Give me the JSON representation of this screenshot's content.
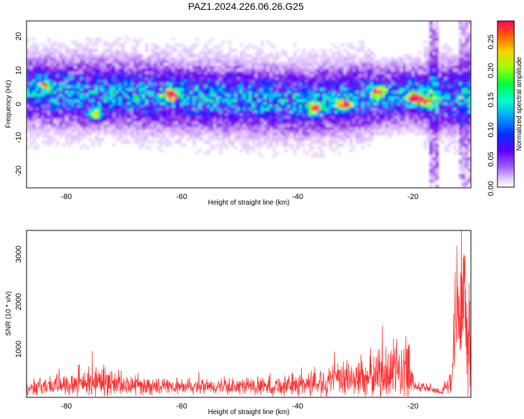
{
  "title": "PAZ1.2024.226.06.26.G25",
  "chart_data": [
    {
      "type": "heatmap",
      "xlabel": "Height of straight line (km)",
      "ylabel": "Frequency (Hz)",
      "xlim": [
        -87,
        -10
      ],
      "ylim": [
        -25,
        25
      ],
      "xticks": [
        "-80",
        "-60",
        "-40",
        "-20"
      ],
      "yticks": [
        "20",
        "10",
        "0",
        "-10",
        "-20"
      ],
      "colorbar": {
        "label": "Normalized spectral amplitude",
        "range": [
          0,
          0.29
        ],
        "ticks": [
          "0.00",
          "0.05",
          "0.10",
          "0.15",
          "0.20",
          "0.25"
        ],
        "colors": [
          "#ffffff",
          "#d6b0ff",
          "#8a2be2",
          "#5a00ff",
          "#0033ff",
          "#00b4ff",
          "#00ffd0",
          "#00ff40",
          "#c8ff00",
          "#ffd000",
          "#ff6000",
          "#ff0080"
        ]
      },
      "description_values": {
        "band_center_hz": [
          {
            "x": -85,
            "f": 4
          },
          {
            "x": -65,
            "f": 3
          },
          {
            "x": -40,
            "f": 1
          },
          {
            "x": -20,
            "f": 3
          },
          {
            "x": -12,
            "f": 2
          }
        ],
        "peaks": [
          {
            "x": -84,
            "f": 6,
            "amp": 0.15
          },
          {
            "x": -75,
            "f": -3,
            "amp": 0.22
          },
          {
            "x": -62,
            "f": 3,
            "amp": 0.27
          },
          {
            "x": -37,
            "f": -1,
            "amp": 0.22
          },
          {
            "x": -32,
            "f": 0,
            "amp": 0.25
          },
          {
            "x": -26,
            "f": 4,
            "amp": 0.25
          },
          {
            "x": -20,
            "f": 2,
            "amp": 0.28
          },
          {
            "x": -18,
            "f": 1,
            "amp": 0.24
          }
        ]
      }
    },
    {
      "type": "line",
      "xlabel": "Height of straight line (km)",
      "ylabel": "SNR (10 * v/v)",
      "xlim": [
        -87,
        -10
      ],
      "ylim": [
        0,
        3500
      ],
      "xticks": [
        "-80",
        "-60",
        "-40",
        "-20"
      ],
      "yticks": [
        "1000",
        "2000",
        "3000"
      ],
      "color": "#ff3030",
      "envelope": [
        {
          "x": -87,
          "mean": 200,
          "amp": 180
        },
        {
          "x": -80,
          "mean": 280,
          "amp": 300
        },
        {
          "x": -75,
          "mean": 330,
          "amp": 400
        },
        {
          "x": -70,
          "mean": 250,
          "amp": 250
        },
        {
          "x": -60,
          "mean": 210,
          "amp": 180
        },
        {
          "x": -50,
          "mean": 230,
          "amp": 220
        },
        {
          "x": -42,
          "mean": 240,
          "amp": 260
        },
        {
          "x": -35,
          "mean": 330,
          "amp": 380
        },
        {
          "x": -28,
          "mean": 430,
          "amp": 600
        },
        {
          "x": -23,
          "mean": 560,
          "amp": 800
        },
        {
          "x": -20.5,
          "mean": 620,
          "amp": 780
        },
        {
          "x": -19.8,
          "mean": 250,
          "amp": 150
        },
        {
          "x": -15,
          "mean": 120,
          "amp": 90
        },
        {
          "x": -13.3,
          "mean": 300,
          "amp": 300
        },
        {
          "x": -12.7,
          "mean": 1800,
          "amp": 1700
        },
        {
          "x": -11,
          "mean": 1400,
          "amp": 1800
        },
        {
          "x": -10,
          "mean": 1500,
          "amp": 1700
        }
      ]
    }
  ]
}
